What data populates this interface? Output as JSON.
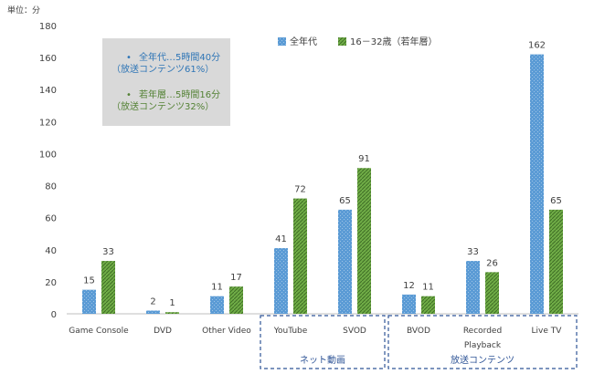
{
  "chart_data": {
    "type": "bar",
    "unit_label": "単位：分",
    "categories": [
      "Game Console",
      "DVD",
      "Other Video",
      "YouTube",
      "SVOD",
      "BVOD",
      "Recorded Playback",
      "Live TV"
    ],
    "series": [
      {
        "name": "全年代",
        "color": "#5b9bd5",
        "values": [
          15,
          2,
          11,
          41,
          65,
          12,
          33,
          162
        ]
      },
      {
        "name": "16－32歳（若年層）",
        "color": "#70ad47",
        "values": [
          33,
          1,
          17,
          72,
          91,
          11,
          26,
          65
        ]
      }
    ],
    "ylim": [
      0,
      180
    ],
    "yticks": [
      0,
      20,
      40,
      60,
      80,
      100,
      120,
      140,
      160,
      180
    ],
    "legend": {
      "placement": "top-center"
    },
    "annotation": {
      "lines": [
        {
          "bullet": "•",
          "text": "全年代…5時間40分",
          "sub": "（放送コンテンツ61%）",
          "color": "#2e75b6"
        },
        {
          "bullet": "•",
          "text": "若年層…5時間16分",
          "sub": "（放送コンテンツ32%）",
          "color": "#548235"
        }
      ]
    },
    "groups": [
      {
        "label": "ネット動画",
        "categories": [
          "YouTube",
          "SVOD"
        ]
      },
      {
        "label": "放送コンテンツ",
        "categories": [
          "BVOD",
          "Recorded Playback",
          "Live TV"
        ]
      }
    ],
    "grid": false
  }
}
